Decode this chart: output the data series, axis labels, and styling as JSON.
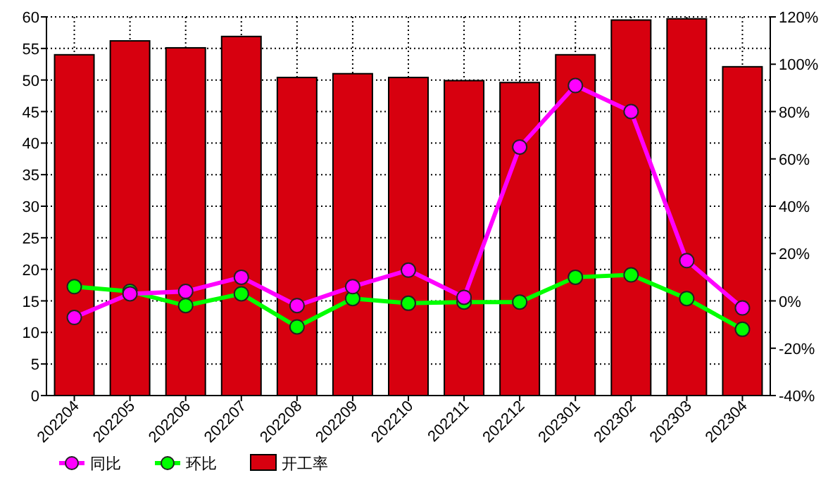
{
  "chart_data": {
    "type": "bar",
    "categories": [
      "202204",
      "202205",
      "202206",
      "202207",
      "202208",
      "202209",
      "202210",
      "202211",
      "202212",
      "202301",
      "202302",
      "202303",
      "202304"
    ],
    "series": [
      {
        "name": "同比",
        "type": "line",
        "axis": "y2",
        "color": "#ff00ff",
        "values": [
          -7,
          3,
          4,
          10,
          -2,
          6,
          13,
          1.5,
          65,
          91,
          80,
          17,
          -3
        ]
      },
      {
        "name": "环比",
        "type": "line",
        "axis": "y2",
        "color": "#00ff00",
        "values": [
          6,
          4,
          -2,
          3,
          -11,
          1,
          -1,
          -0.5,
          -0.5,
          10,
          11,
          1,
          -12
        ]
      },
      {
        "name": "开工率",
        "type": "bar",
        "color": "#d7000f",
        "values": [
          54.0,
          56.2,
          55.1,
          56.9,
          50.4,
          51.0,
          50.4,
          49.9,
          49.6,
          54.0,
          59.5,
          59.7,
          52.1
        ]
      }
    ],
    "ylim": [
      0,
      60
    ],
    "yticks": [
      0,
      5,
      10,
      15,
      20,
      25,
      30,
      35,
      40,
      45,
      50,
      55,
      60
    ],
    "y2lim": [
      -40,
      120
    ],
    "y2ticks": [
      {
        "value": -40,
        "label": "-40%"
      },
      {
        "value": -20,
        "label": "-20%"
      },
      {
        "value": 0,
        "label": "0%"
      },
      {
        "value": 20,
        "label": "20%"
      },
      {
        "value": 40,
        "label": "40%"
      },
      {
        "value": 60,
        "label": "60%"
      },
      {
        "value": 80,
        "label": "80%"
      },
      {
        "value": 100,
        "label": "100%"
      },
      {
        "value": 120,
        "label": "120%"
      }
    ],
    "grid": true,
    "legend": "bottom",
    "marker": "circle",
    "line_style": "solid"
  }
}
